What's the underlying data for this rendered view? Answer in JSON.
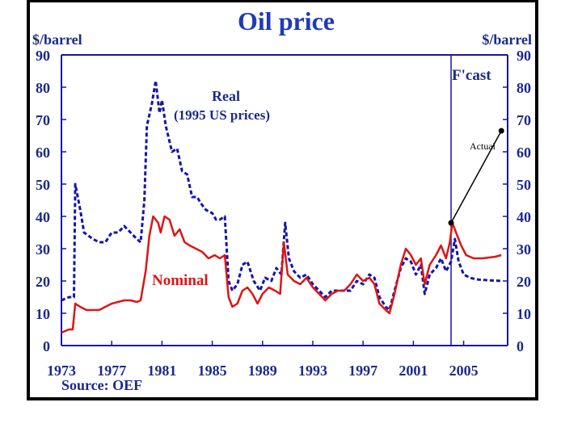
{
  "chart_data": {
    "type": "line",
    "title": "Oil price",
    "ylabel_left": "$/barrel",
    "ylabel_right": "$/barrel",
    "ylim": [
      0,
      90
    ],
    "xlim": [
      1973,
      2008.5
    ],
    "yticks": [
      0,
      10,
      20,
      30,
      40,
      50,
      60,
      70,
      80,
      90
    ],
    "xticks": [
      "1973",
      "1977",
      "1981",
      "1985",
      "1989",
      "1993",
      "1997",
      "2001",
      "2005"
    ],
    "source": "Source: OEF",
    "forecast_start": 2004.0,
    "annotations": {
      "forecast": "F'cast",
      "real": "Real",
      "real_sub": "(1995 US prices)",
      "nominal": "Nominal",
      "actual": "Actual"
    },
    "actual_pointer": {
      "from": [
        2004.0,
        38
      ],
      "to": [
        2008,
        66.5
      ]
    },
    "series": [
      {
        "name": "Real (1995 US prices)",
        "color": "#1515a8",
        "style": "dashed",
        "points": [
          [
            1973,
            14
          ],
          [
            1973.6,
            15
          ],
          [
            1974,
            15
          ],
          [
            1974.1,
            50
          ],
          [
            1974.5,
            42
          ],
          [
            1974.8,
            35
          ],
          [
            1975.5,
            33
          ],
          [
            1976,
            32
          ],
          [
            1976.5,
            32
          ],
          [
            1977,
            35
          ],
          [
            1977.5,
            35
          ],
          [
            1978,
            37
          ],
          [
            1978.5,
            35
          ],
          [
            1979,
            33
          ],
          [
            1979.3,
            32
          ],
          [
            1979.6,
            45
          ],
          [
            1979.8,
            68
          ],
          [
            1980.2,
            75
          ],
          [
            1980.5,
            82
          ],
          [
            1980.8,
            72
          ],
          [
            1981,
            76
          ],
          [
            1981.3,
            68
          ],
          [
            1981.8,
            60
          ],
          [
            1982.2,
            61
          ],
          [
            1982.6,
            54
          ],
          [
            1983,
            53
          ],
          [
            1983.4,
            46
          ],
          [
            1983.8,
            46
          ],
          [
            1984.1,
            44
          ],
          [
            1984.5,
            42
          ],
          [
            1985,
            41
          ],
          [
            1985.3,
            39
          ],
          [
            1985.6,
            39
          ],
          [
            1986,
            40
          ],
          [
            1986.3,
            20
          ],
          [
            1986.6,
            17
          ],
          [
            1987,
            19
          ],
          [
            1987.4,
            25
          ],
          [
            1987.8,
            26
          ],
          [
            1988.3,
            20
          ],
          [
            1988.8,
            17
          ],
          [
            1989.2,
            21
          ],
          [
            1989.7,
            20
          ],
          [
            1990.1,
            24
          ],
          [
            1990.5,
            22
          ],
          [
            1990.8,
            38
          ],
          [
            1991.1,
            27
          ],
          [
            1991.5,
            23
          ],
          [
            1992,
            21
          ],
          [
            1992.5,
            22
          ],
          [
            1993,
            19
          ],
          [
            1993.5,
            17
          ],
          [
            1994,
            15
          ],
          [
            1994.5,
            17
          ],
          [
            1995,
            17
          ],
          [
            1995.5,
            17
          ],
          [
            1996,
            17
          ],
          [
            1996.5,
            20
          ],
          [
            1997,
            19
          ],
          [
            1997.5,
            22
          ],
          [
            1997.9,
            21
          ],
          [
            1998.3,
            15
          ],
          [
            1998.8,
            12
          ],
          [
            1999.1,
            11
          ],
          [
            1999.5,
            17
          ],
          [
            2000,
            24
          ],
          [
            2000.4,
            27
          ],
          [
            2000.8,
            26
          ],
          [
            2001.2,
            22
          ],
          [
            2001.6,
            25
          ],
          [
            2001.9,
            16
          ],
          [
            2002.3,
            22
          ],
          [
            2002.8,
            24
          ],
          [
            2003.2,
            27
          ],
          [
            2003.6,
            23
          ],
          [
            2004,
            26
          ],
          [
            2004.3,
            33
          ],
          [
            2004.6,
            26
          ],
          [
            2005,
            22
          ],
          [
            2005.5,
            21
          ],
          [
            2006,
            20.5
          ],
          [
            2007,
            20.2
          ],
          [
            2008,
            20
          ]
        ]
      },
      {
        "name": "Nominal",
        "color": "#dd1515",
        "style": "solid",
        "points": [
          [
            1973,
            4
          ],
          [
            1973.6,
            5
          ],
          [
            1973.9,
            5
          ],
          [
            1974.1,
            13
          ],
          [
            1974.5,
            12
          ],
          [
            1975,
            11
          ],
          [
            1976,
            11
          ],
          [
            1976.5,
            12
          ],
          [
            1977,
            13
          ],
          [
            1977.5,
            13.5
          ],
          [
            1978,
            14
          ],
          [
            1978.5,
            14
          ],
          [
            1979,
            13.5
          ],
          [
            1979.3,
            14
          ],
          [
            1979.7,
            23
          ],
          [
            1980,
            34
          ],
          [
            1980.3,
            40
          ],
          [
            1980.7,
            38
          ],
          [
            1980.9,
            35
          ],
          [
            1981.2,
            40
          ],
          [
            1981.6,
            39
          ],
          [
            1982,
            34
          ],
          [
            1982.4,
            36
          ],
          [
            1982.8,
            32
          ],
          [
            1983.2,
            31
          ],
          [
            1983.7,
            30
          ],
          [
            1984.2,
            29
          ],
          [
            1984.7,
            27
          ],
          [
            1985.2,
            28
          ],
          [
            1985.6,
            27
          ],
          [
            1986,
            28
          ],
          [
            1986.3,
            15
          ],
          [
            1986.6,
            12
          ],
          [
            1987,
            13
          ],
          [
            1987.4,
            17
          ],
          [
            1987.8,
            18
          ],
          [
            1988.2,
            16
          ],
          [
            1988.6,
            13
          ],
          [
            1989,
            16
          ],
          [
            1989.5,
            18
          ],
          [
            1990,
            17
          ],
          [
            1990.4,
            16
          ],
          [
            1990.7,
            32
          ],
          [
            1991,
            22
          ],
          [
            1991.5,
            20
          ],
          [
            1992,
            19
          ],
          [
            1992.5,
            21
          ],
          [
            1993,
            18
          ],
          [
            1993.5,
            16
          ],
          [
            1994,
            14
          ],
          [
            1994.5,
            16
          ],
          [
            1995,
            17
          ],
          [
            1995.5,
            17
          ],
          [
            1996,
            19
          ],
          [
            1996.5,
            22
          ],
          [
            1997,
            20
          ],
          [
            1997.5,
            21
          ],
          [
            1997.9,
            19
          ],
          [
            1998.3,
            13
          ],
          [
            1998.8,
            11
          ],
          [
            1999.1,
            10
          ],
          [
            1999.5,
            16
          ],
          [
            2000,
            25
          ],
          [
            2000.4,
            30
          ],
          [
            2000.8,
            28
          ],
          [
            2001.2,
            25
          ],
          [
            2001.6,
            27
          ],
          [
            2001.9,
            19
          ],
          [
            2002.3,
            25
          ],
          [
            2002.8,
            28
          ],
          [
            2003.2,
            31
          ],
          [
            2003.6,
            27
          ],
          [
            2003.9,
            32
          ],
          [
            2004.1,
            38
          ],
          [
            2004.4,
            35
          ],
          [
            2004.8,
            31
          ],
          [
            2005.2,
            28
          ],
          [
            2005.8,
            27
          ],
          [
            2006.5,
            27
          ],
          [
            2007.5,
            27.5
          ],
          [
            2008,
            28
          ]
        ]
      }
    ]
  }
}
